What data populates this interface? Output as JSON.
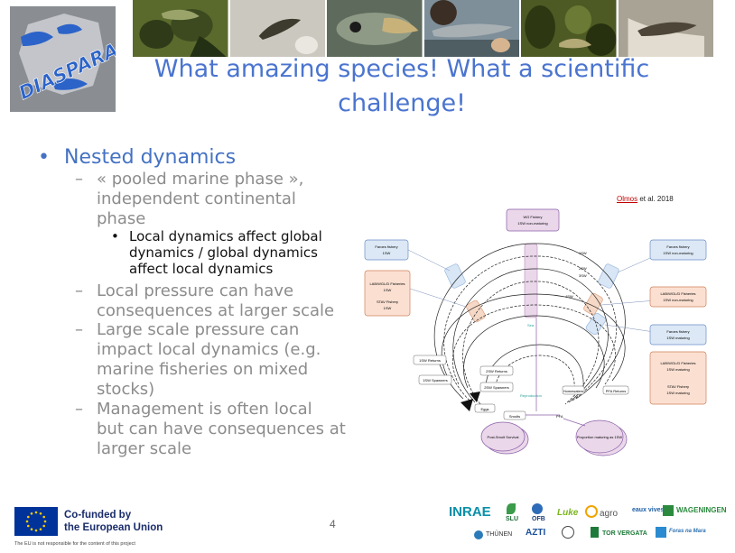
{
  "header": {
    "logo_text": "DIASPARA",
    "photos": [
      "fish-photo-1",
      "fish-photo-2",
      "fish-photo-3",
      "fish-photo-4",
      "fish-photo-5",
      "fish-photo-6"
    ]
  },
  "slide": {
    "title_line1": "What amazing species! What a scientific",
    "title_line2": "challenge!",
    "bullet_main": "Nested dynamics",
    "sub1_l1": "« pooled marine phase »,",
    "sub1_l2": "independent continental",
    "sub1_l3": "phase",
    "sub1a_l1": "Local dynamics affect global",
    "sub1a_l2": "dynamics / global dynamics",
    "sub1a_l3": "affect local dynamics",
    "sub2_l1": "Local pressure can have",
    "sub2_l2": "consequences at larger scale",
    "sub3_l1": "Large scale pressure can",
    "sub3_l2": "impact local dynamics (e.g.",
    "sub3_l3": "marine fisheries on mixed",
    "sub3_l4": "stocks)",
    "sub4_l1": "Management is often local",
    "sub4_l2": "but can have consequences at",
    "sub4_l3": "larger scale",
    "citation_author": "Olmos",
    "citation_rest": " et al.  2018"
  },
  "diagram": {
    "box_top": "WG Fishery",
    "box_top_sub": "1SW non-maturing",
    "box_faroes_left": "Faroes fishery",
    "box_faroes_left_sub": "1SW",
    "box_lab_left": "LAB/WGL/D Fisheries",
    "box_lab_left_sub": "1SW",
    "box_lab_left2": "STAV Fishery",
    "box_lab_left2_sub": "1SW",
    "box_faroes_right": "Faroes fishery",
    "box_faroes_right_sub": "1SW non-maturing",
    "box_lab_right": "LAB/WGL/D Fisheries",
    "box_lab_right_sub": "1SW non-maturing",
    "box_faroes_right2": "Faroes fishery",
    "box_faroes_right2_sub": "1SW maturing",
    "box_ns_right": "LAB/WGL/D Fisheries",
    "box_ns_right_sub": "1SW maturing",
    "box_stav_right": "STAV Fishery",
    "box_stav_right_sub": "1SW maturing",
    "box_1sw_return": "1SW Returns",
    "box_1sw_spawn": "1SW Spawners",
    "box_2sw_return": "2SW Returns",
    "box_2sw_spawn": "2SW Spawners",
    "box_smolt": "Post-Smolt Survival",
    "box_prop": "Proportion maturing as 1SW",
    "label_eggs": "Eggs",
    "label_smolts": "Smolts",
    "label_pfa": "PFA",
    "label_reproduction": "Reproduction",
    "label_home": "Homewaters",
    "label_pfa2": "PFA Returns",
    "label_sea": "Sea",
    "arc_sw1": "1SW",
    "arc_sw2": "2SW",
    "arc_sw3": "3SW",
    "arc_sw4": "4SW"
  },
  "footer": {
    "cofunded_l1": "Co-funded by",
    "cofunded_l2": "the European Union",
    "disclaimer": "The EU is not responsible for the content of this project",
    "page_number": "4",
    "partner_inrae": "INRAE",
    "partner_slu": "SLU",
    "partner_ofb": "OFB",
    "partner_luke": "Luke",
    "partner_agro": "agro",
    "partner_eaux": "eaux vives",
    "partner_wageningen": "WAGENINGEN",
    "partner_thunen": "THÜNEN",
    "partner_azti": "AZTI",
    "partner_torvergata": "TOR VERGATA",
    "partner_bsf": "Foras na Mara"
  }
}
